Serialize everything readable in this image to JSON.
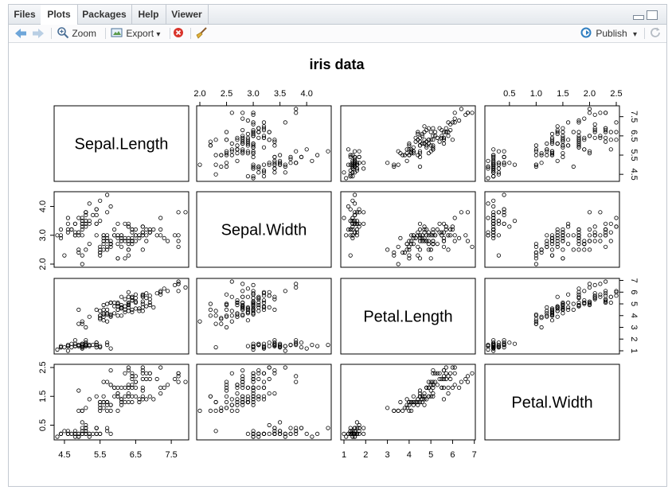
{
  "tabs": [
    "Files",
    "Plots",
    "Packages",
    "Help",
    "Viewer"
  ],
  "toolbar": {
    "zoom_label": "Zoom",
    "export_label": "Export",
    "export_arrow": "▾",
    "publish_label": "Publish",
    "publish_arrow": "▾"
  },
  "colors": {
    "accent": "#2f7fc1",
    "pane_border": "#c3c9d1",
    "tab_bg": "#e8ecf0"
  },
  "chart_data": {
    "type": "scatter",
    "title": "iris data",
    "variables": [
      "Sepal.Length",
      "Sepal.Width",
      "Petal.Length",
      "Petal.Width"
    ],
    "ranges": [
      [
        4.3,
        7.9
      ],
      [
        2.0,
        4.4
      ],
      [
        1.0,
        6.9
      ],
      [
        0.1,
        2.5
      ]
    ],
    "ticks": [
      {
        "values": [
          4.5,
          5.5,
          6.5,
          7.5
        ],
        "labels": [
          "4.5",
          "5.5",
          "6.5",
          "7.5"
        ]
      },
      {
        "values": [
          2.0,
          2.5,
          3.0,
          3.5,
          4.0
        ],
        "labels": [
          "2.0",
          "2.5",
          "3.0",
          "3.5",
          "4.0"
        ]
      },
      {
        "values": [
          1,
          2,
          3,
          4,
          5,
          6,
          7
        ],
        "labels": [
          "1",
          "2",
          "3",
          "4",
          "5",
          "6",
          "7"
        ]
      },
      {
        "values": [
          0.5,
          1.0,
          1.5,
          2.0,
          2.5
        ],
        "labels": [
          "0.5",
          "1.0",
          "1.5",
          "2.0",
          "2.5"
        ]
      }
    ],
    "left_axis_ticks": [
      null,
      {
        "values": [
          2.0,
          3.0,
          4.0
        ],
        "labels": [
          "2.0",
          "3.0",
          "4.0"
        ]
      },
      null,
      {
        "values": [
          0.5,
          1.5,
          2.5
        ],
        "labels": [
          "0.5",
          "1.5",
          "2.5"
        ]
      }
    ],
    "right_axis_ticks": [
      {
        "values": [
          4.5,
          5.5,
          6.5,
          7.5
        ],
        "labels": [
          "4.5",
          "5.5",
          "6.5",
          "7.5"
        ]
      },
      null,
      {
        "values": [
          1,
          2,
          3,
          4,
          5,
          6,
          7
        ],
        "labels": [
          "1",
          "2",
          "3",
          "4",
          "5",
          "6",
          "7"
        ]
      },
      null
    ],
    "observations": [
      [
        5.1,
        3.5,
        1.4,
        0.2
      ],
      [
        4.9,
        3.0,
        1.4,
        0.2
      ],
      [
        4.7,
        3.2,
        1.3,
        0.2
      ],
      [
        4.6,
        3.1,
        1.5,
        0.2
      ],
      [
        5.0,
        3.6,
        1.4,
        0.2
      ],
      [
        5.4,
        3.9,
        1.7,
        0.4
      ],
      [
        4.6,
        3.4,
        1.4,
        0.3
      ],
      [
        5.0,
        3.4,
        1.5,
        0.2
      ],
      [
        4.4,
        2.9,
        1.4,
        0.2
      ],
      [
        4.9,
        3.1,
        1.5,
        0.1
      ],
      [
        5.4,
        3.7,
        1.5,
        0.2
      ],
      [
        4.8,
        3.4,
        1.6,
        0.2
      ],
      [
        4.8,
        3.0,
        1.4,
        0.1
      ],
      [
        4.3,
        3.0,
        1.1,
        0.1
      ],
      [
        5.8,
        4.0,
        1.2,
        0.2
      ],
      [
        5.7,
        4.4,
        1.5,
        0.4
      ],
      [
        5.4,
        3.9,
        1.3,
        0.4
      ],
      [
        5.1,
        3.5,
        1.4,
        0.3
      ],
      [
        5.7,
        3.8,
        1.7,
        0.3
      ],
      [
        5.1,
        3.8,
        1.5,
        0.3
      ],
      [
        5.4,
        3.4,
        1.7,
        0.2
      ],
      [
        5.1,
        3.7,
        1.5,
        0.4
      ],
      [
        4.6,
        3.6,
        1.0,
        0.2
      ],
      [
        5.1,
        3.3,
        1.7,
        0.5
      ],
      [
        4.8,
        3.4,
        1.9,
        0.2
      ],
      [
        5.0,
        3.0,
        1.6,
        0.2
      ],
      [
        5.0,
        3.4,
        1.6,
        0.4
      ],
      [
        5.2,
        3.5,
        1.5,
        0.2
      ],
      [
        5.2,
        3.4,
        1.4,
        0.2
      ],
      [
        4.7,
        3.2,
        1.6,
        0.2
      ],
      [
        4.8,
        3.1,
        1.6,
        0.2
      ],
      [
        5.4,
        3.4,
        1.5,
        0.4
      ],
      [
        5.2,
        4.1,
        1.5,
        0.1
      ],
      [
        5.5,
        4.2,
        1.4,
        0.2
      ],
      [
        4.9,
        3.1,
        1.5,
        0.2
      ],
      [
        5.0,
        3.2,
        1.2,
        0.2
      ],
      [
        5.5,
        3.5,
        1.3,
        0.2
      ],
      [
        4.9,
        3.6,
        1.4,
        0.1
      ],
      [
        4.4,
        3.0,
        1.3,
        0.2
      ],
      [
        5.1,
        3.4,
        1.5,
        0.2
      ],
      [
        5.0,
        3.5,
        1.3,
        0.3
      ],
      [
        4.5,
        2.3,
        1.3,
        0.3
      ],
      [
        4.4,
        3.2,
        1.3,
        0.2
      ],
      [
        5.0,
        3.5,
        1.6,
        0.6
      ],
      [
        5.1,
        3.8,
        1.9,
        0.4
      ],
      [
        4.8,
        3.0,
        1.4,
        0.3
      ],
      [
        5.1,
        3.8,
        1.6,
        0.2
      ],
      [
        4.6,
        3.2,
        1.4,
        0.2
      ],
      [
        5.3,
        3.7,
        1.5,
        0.2
      ],
      [
        5.0,
        3.3,
        1.4,
        0.2
      ],
      [
        7.0,
        3.2,
        4.7,
        1.4
      ],
      [
        6.4,
        3.2,
        4.5,
        1.5
      ],
      [
        6.9,
        3.1,
        4.9,
        1.5
      ],
      [
        5.5,
        2.3,
        4.0,
        1.3
      ],
      [
        6.5,
        2.8,
        4.6,
        1.5
      ],
      [
        5.7,
        2.8,
        4.5,
        1.3
      ],
      [
        6.3,
        3.3,
        4.7,
        1.6
      ],
      [
        4.9,
        2.4,
        3.3,
        1.0
      ],
      [
        6.6,
        2.9,
        4.6,
        1.3
      ],
      [
        5.2,
        2.7,
        3.9,
        1.4
      ],
      [
        5.0,
        2.0,
        3.5,
        1.0
      ],
      [
        5.9,
        3.0,
        4.2,
        1.5
      ],
      [
        6.0,
        2.2,
        4.0,
        1.0
      ],
      [
        6.1,
        2.9,
        4.7,
        1.4
      ],
      [
        5.6,
        2.9,
        3.6,
        1.3
      ],
      [
        6.7,
        3.1,
        4.4,
        1.4
      ],
      [
        5.6,
        3.0,
        4.5,
        1.5
      ],
      [
        5.8,
        2.7,
        4.1,
        1.0
      ],
      [
        6.2,
        2.2,
        4.5,
        1.5
      ],
      [
        5.6,
        2.5,
        3.9,
        1.1
      ],
      [
        5.9,
        3.2,
        4.8,
        1.8
      ],
      [
        6.1,
        2.8,
        4.0,
        1.3
      ],
      [
        6.3,
        2.5,
        4.9,
        1.5
      ],
      [
        6.1,
        2.8,
        4.7,
        1.2
      ],
      [
        6.4,
        2.9,
        4.3,
        1.3
      ],
      [
        6.6,
        3.0,
        4.4,
        1.4
      ],
      [
        6.8,
        2.8,
        4.8,
        1.4
      ],
      [
        6.7,
        3.0,
        5.0,
        1.7
      ],
      [
        6.0,
        2.9,
        4.5,
        1.5
      ],
      [
        5.7,
        2.6,
        3.5,
        1.0
      ],
      [
        5.5,
        2.4,
        3.8,
        1.1
      ],
      [
        5.5,
        2.4,
        3.7,
        1.0
      ],
      [
        5.8,
        2.7,
        3.9,
        1.2
      ],
      [
        6.0,
        2.7,
        5.1,
        1.6
      ],
      [
        5.4,
        3.0,
        4.5,
        1.5
      ],
      [
        6.0,
        3.4,
        4.5,
        1.6
      ],
      [
        6.7,
        3.1,
        4.7,
        1.5
      ],
      [
        6.3,
        2.3,
        4.4,
        1.3
      ],
      [
        5.6,
        3.0,
        4.1,
        1.3
      ],
      [
        5.5,
        2.5,
        4.0,
        1.3
      ],
      [
        5.5,
        2.6,
        4.4,
        1.2
      ],
      [
        6.1,
        3.0,
        4.6,
        1.4
      ],
      [
        5.8,
        2.6,
        4.0,
        1.2
      ],
      [
        5.0,
        2.3,
        3.3,
        1.0
      ],
      [
        5.6,
        2.7,
        4.2,
        1.3
      ],
      [
        5.7,
        3.0,
        4.2,
        1.2
      ],
      [
        5.7,
        2.9,
        4.2,
        1.3
      ],
      [
        6.2,
        2.9,
        4.3,
        1.3
      ],
      [
        5.1,
        2.5,
        3.0,
        1.1
      ],
      [
        5.7,
        2.8,
        4.1,
        1.3
      ],
      [
        6.3,
        3.3,
        6.0,
        2.5
      ],
      [
        5.8,
        2.7,
        5.1,
        1.9
      ],
      [
        7.1,
        3.0,
        5.9,
        2.1
      ],
      [
        6.3,
        2.9,
        5.6,
        1.8
      ],
      [
        6.5,
        3.0,
        5.8,
        2.2
      ],
      [
        7.6,
        3.0,
        6.6,
        2.1
      ],
      [
        4.9,
        2.5,
        4.5,
        1.7
      ],
      [
        7.3,
        2.9,
        6.3,
        1.8
      ],
      [
        6.7,
        2.5,
        5.8,
        1.8
      ],
      [
        7.2,
        3.6,
        6.1,
        2.5
      ],
      [
        6.5,
        3.2,
        5.1,
        2.0
      ],
      [
        6.4,
        2.7,
        5.3,
        1.9
      ],
      [
        6.8,
        3.0,
        5.5,
        2.1
      ],
      [
        5.7,
        2.5,
        5.0,
        2.0
      ],
      [
        5.8,
        2.8,
        5.1,
        2.4
      ],
      [
        6.4,
        3.2,
        5.3,
        2.3
      ],
      [
        6.5,
        3.0,
        5.5,
        1.8
      ],
      [
        7.7,
        3.8,
        6.7,
        2.2
      ],
      [
        7.7,
        2.6,
        6.9,
        2.3
      ],
      [
        6.0,
        2.2,
        5.0,
        1.5
      ],
      [
        6.9,
        3.2,
        5.7,
        2.3
      ],
      [
        5.6,
        2.8,
        4.9,
        2.0
      ],
      [
        7.7,
        2.8,
        6.7,
        2.0
      ],
      [
        6.3,
        2.7,
        4.9,
        1.8
      ],
      [
        6.7,
        3.3,
        5.7,
        2.1
      ],
      [
        7.2,
        3.2,
        6.0,
        1.8
      ],
      [
        6.2,
        2.8,
        4.8,
        1.8
      ],
      [
        6.1,
        3.0,
        4.9,
        1.8
      ],
      [
        6.4,
        2.8,
        5.6,
        2.1
      ],
      [
        7.2,
        3.0,
        5.8,
        1.6
      ],
      [
        7.4,
        2.8,
        6.1,
        1.9
      ],
      [
        7.9,
        3.8,
        6.4,
        2.0
      ],
      [
        6.4,
        2.8,
        5.6,
        2.2
      ],
      [
        6.3,
        2.8,
        5.1,
        1.5
      ],
      [
        6.1,
        2.6,
        5.6,
        1.4
      ],
      [
        7.7,
        3.0,
        6.1,
        2.3
      ],
      [
        6.3,
        3.4,
        5.6,
        2.4
      ],
      [
        6.4,
        3.1,
        5.5,
        1.8
      ],
      [
        6.0,
        3.0,
        4.8,
        1.8
      ],
      [
        6.9,
        3.1,
        5.4,
        2.1
      ],
      [
        6.7,
        3.1,
        5.6,
        2.4
      ],
      [
        6.9,
        3.1,
        5.1,
        2.3
      ],
      [
        5.8,
        2.7,
        5.1,
        1.9
      ],
      [
        6.8,
        3.2,
        5.9,
        2.3
      ],
      [
        6.7,
        3.3,
        5.7,
        2.5
      ],
      [
        6.7,
        3.0,
        5.2,
        2.3
      ],
      [
        6.3,
        2.5,
        5.0,
        1.9
      ],
      [
        6.5,
        3.0,
        5.2,
        2.0
      ],
      [
        6.2,
        3.4,
        5.4,
        2.3
      ],
      [
        5.9,
        3.0,
        5.1,
        1.8
      ]
    ]
  }
}
